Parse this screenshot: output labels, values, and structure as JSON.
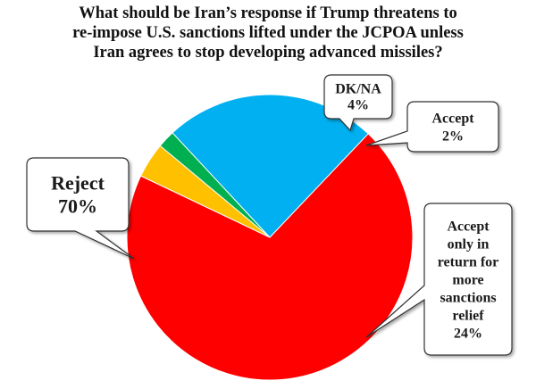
{
  "title": {
    "line1": "What should be Iran’s response if Trump threatens to",
    "line2": "re-impose U.S. sanctions lifted under the JCPOA unless",
    "line3": "Iran agrees to stop developing advanced missiles?"
  },
  "chart_data": {
    "type": "pie",
    "title": "What should be Iran’s response if Trump threatens to re-impose U.S. sanctions lifted under the JCPOA unless Iran agrees to stop developing advanced missiles?",
    "slices": [
      {
        "name": "Reject",
        "value": 70,
        "label": "70%",
        "color": "#ff0000",
        "key": "reject"
      },
      {
        "name": "DK/NA",
        "value": 4,
        "label": "4%",
        "color": "#ffc000",
        "key": "dkna"
      },
      {
        "name": "Accept",
        "value": 2,
        "label": "2%",
        "color": "#00b050",
        "key": "accept"
      },
      {
        "name": "Accept only in return for more sanctions relief",
        "value": 24,
        "label": "24%",
        "color": "#00b0f0",
        "key": "accept-relief"
      }
    ],
    "callouts": {
      "reject": [
        "Reject",
        "70%"
      ],
      "dkna": [
        "DK/NA",
        "4%"
      ],
      "accept": [
        "Accept",
        "2%"
      ],
      "accept-relief": [
        "Accept",
        "only in",
        "return for",
        "more",
        "sanctions",
        "relief",
        "24%"
      ]
    }
  }
}
